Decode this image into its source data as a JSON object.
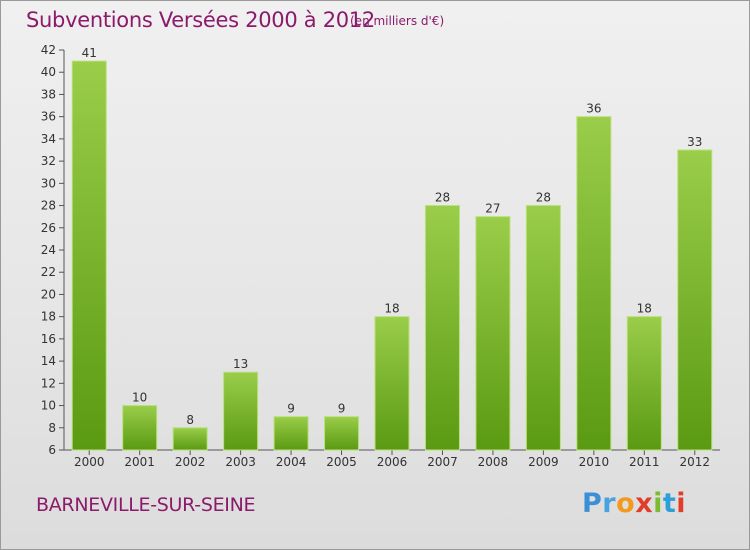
{
  "chart_data": {
    "type": "bar",
    "title": "Subventions Versées 2000 à 2012",
    "unit": "(en milliers d'€)",
    "categories": [
      "2000",
      "2001",
      "2002",
      "2003",
      "2004",
      "2005",
      "2006",
      "2007",
      "2008",
      "2009",
      "2010",
      "2011",
      "2012"
    ],
    "values": [
      41,
      10,
      8,
      13,
      9,
      9,
      18,
      28,
      27,
      28,
      36,
      18,
      33
    ],
    "ylim": [
      6,
      42
    ],
    "yticks": [
      6,
      8,
      10,
      12,
      14,
      16,
      18,
      20,
      22,
      24,
      26,
      28,
      30,
      32,
      34,
      36,
      38,
      40,
      42
    ],
    "xlabel": "",
    "ylabel": "",
    "grid": false,
    "bar_color_top": "#9acd4a",
    "bar_color_bottom": "#5a9a12"
  },
  "commune": "BARNEVILLE-SUR-SEINE",
  "brand": {
    "logo_text": "Proxiti"
  },
  "colors": {
    "title": "#8b1a6b"
  }
}
